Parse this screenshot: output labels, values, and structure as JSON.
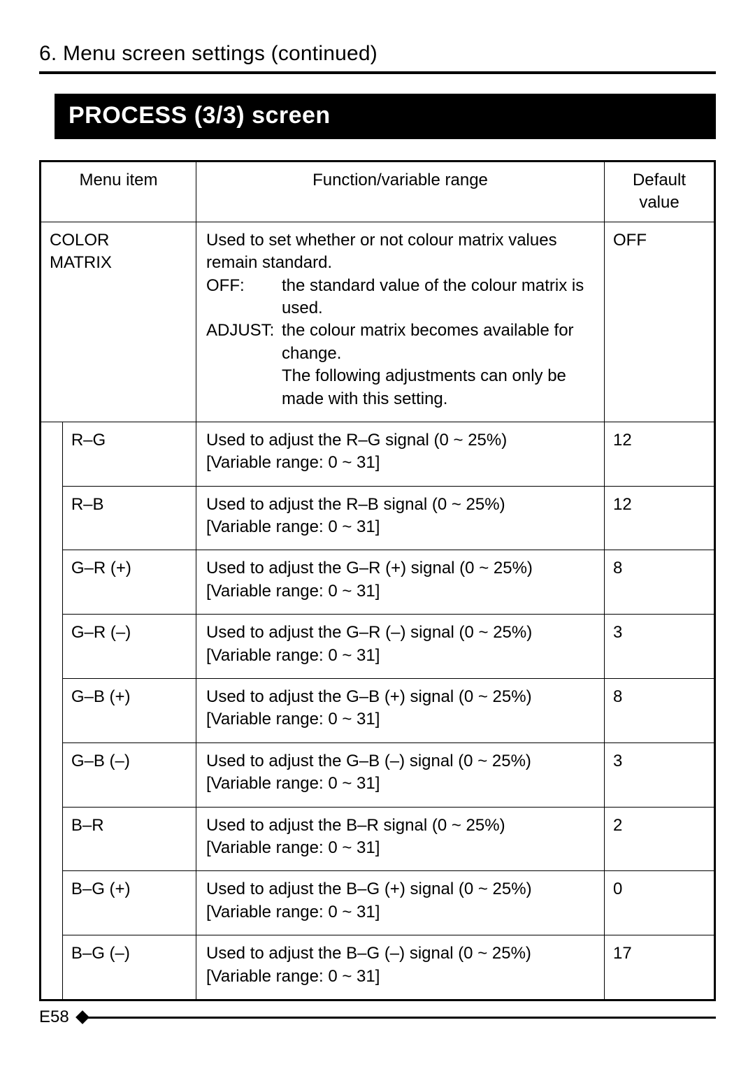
{
  "page": {
    "section_title": "6. Menu screen settings (continued)",
    "screen_header": "PROCESS (3/3) screen",
    "page_number": "E58"
  },
  "table": {
    "headers": {
      "menu_item": "Menu item",
      "function": "Function/variable range",
      "default": "Default value"
    },
    "color_matrix": {
      "label_line1": "COLOR",
      "label_line2": "MATRIX",
      "desc_intro": "Used to set whether or not colour matrix values remain standard.",
      "opt1_label": "OFF:",
      "opt1_text": "the standard value of the colour matrix is used.",
      "opt2_label": "ADJUST:",
      "opt2_text_a": "the colour matrix becomes available for change.",
      "opt2_text_b": "The following adjustments can only be made with this setting.",
      "default": "OFF"
    },
    "rows": [
      {
        "item": "R–G",
        "func_main": "Used to adjust the R–G signal (0 ~ 25%)",
        "func_range": "[Variable range: 0 ~ 31]",
        "default": "12"
      },
      {
        "item": "R–B",
        "func_main": "Used to adjust the R–B signal (0 ~ 25%)",
        "func_range": "[Variable range: 0 ~ 31]",
        "default": "12"
      },
      {
        "item": "G–R (+)",
        "func_main": "Used to adjust the G–R (+) signal (0 ~ 25%)",
        "func_range": "[Variable range: 0 ~ 31]",
        "default": "8"
      },
      {
        "item": "G–R (–)",
        "func_main": "Used to adjust the G–R (–) signal (0 ~ 25%)",
        "func_range": "[Variable range: 0 ~ 31]",
        "default": "3"
      },
      {
        "item": "G–B (+)",
        "func_main": "Used to adjust the G–B (+) signal (0 ~ 25%)",
        "func_range": "[Variable range: 0 ~ 31]",
        "default": "8"
      },
      {
        "item": "G–B (–)",
        "func_main": "Used to adjust the G–B (–) signal (0 ~ 25%)",
        "func_range": "[Variable range: 0 ~ 31]",
        "default": "3"
      },
      {
        "item": "B–R",
        "func_main": "Used to adjust the B–R signal (0 ~ 25%)",
        "func_range": "[Variable range: 0 ~ 31]",
        "default": "2"
      },
      {
        "item": "B–G (+)",
        "func_main": "Used to adjust the B–G (+) signal (0 ~ 25%)",
        "func_range": "[Variable range: 0 ~ 31]",
        "default": "0"
      },
      {
        "item": "B–G (–)",
        "func_main": "Used to adjust the B–G (–) signal (0 ~ 25%)",
        "func_range": "[Variable range: 0 ~ 31]",
        "default": "17"
      }
    ]
  }
}
